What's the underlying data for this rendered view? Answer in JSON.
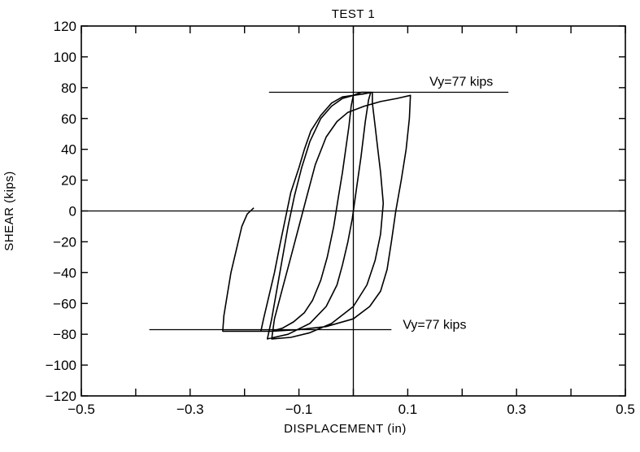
{
  "chart_data": {
    "type": "line",
    "title": "TEST  1",
    "xlabel": "DISPLACEMENT    (in)",
    "ylabel": "SHEAR    (kips)",
    "xlim": [
      -0.5,
      0.5
    ],
    "ylim": [
      -120,
      120
    ],
    "xticks": [
      -0.5,
      -0.3,
      -0.1,
      0.1,
      0.3,
      0.5
    ],
    "xtick_labels": [
      "−0.5",
      "−0.3",
      "−0.1",
      "0.1",
      "0.3",
      "0.5"
    ],
    "yticks": [
      120,
      100,
      80,
      60,
      40,
      20,
      0,
      -20,
      -40,
      -60,
      -80,
      -100,
      -120
    ],
    "ytick_labels": [
      "120",
      "100",
      "80",
      "60",
      "40",
      "20",
      "0",
      "−20",
      "−40",
      "−60",
      "−80",
      "−100",
      "−120"
    ],
    "grid": false,
    "reference_lines": [
      {
        "orientation": "horizontal",
        "y": 77,
        "x_range": [
          -0.155,
          0.285
        ],
        "label": "Vy=77 kips"
      },
      {
        "orientation": "horizontal",
        "y": -77,
        "x_range": [
          -0.375,
          0.07
        ],
        "label": "Vy=77 kips"
      },
      {
        "orientation": "horizontal",
        "y": 0,
        "x_range": [
          -0.5,
          0.5
        ]
      },
      {
        "orientation": "vertical",
        "x": 0,
        "y_range": [
          -120,
          120
        ]
      }
    ],
    "series": [
      {
        "points": [
          [
            0.0,
            75
          ],
          [
            -0.004,
            68
          ],
          [
            -0.008,
            55
          ],
          [
            -0.014,
            40
          ],
          [
            -0.02,
            25
          ],
          [
            -0.028,
            8
          ],
          [
            -0.036,
            -10
          ],
          [
            -0.048,
            -30
          ],
          [
            -0.06,
            -45
          ],
          [
            -0.075,
            -58
          ],
          [
            -0.09,
            -66
          ],
          [
            -0.11,
            -72
          ],
          [
            -0.13,
            -76
          ],
          [
            -0.15,
            -78
          ],
          [
            -0.17,
            -78
          ],
          [
            -0.165,
            -70
          ],
          [
            -0.155,
            -55
          ],
          [
            -0.145,
            -40
          ],
          [
            -0.135,
            -22
          ],
          [
            -0.125,
            -5
          ],
          [
            -0.115,
            12
          ],
          [
            -0.1,
            28
          ],
          [
            -0.09,
            40
          ],
          [
            -0.078,
            52
          ],
          [
            -0.06,
            62
          ],
          [
            -0.04,
            70
          ],
          [
            -0.02,
            74
          ],
          [
            0.0,
            75
          ],
          [
            0.015,
            77
          ],
          [
            0.032,
            77
          ],
          [
            0.028,
            72
          ],
          [
            0.022,
            58
          ],
          [
            0.014,
            35
          ],
          [
            0.006,
            15
          ],
          [
            -0.002,
            -5
          ],
          [
            -0.01,
            -20
          ],
          [
            -0.02,
            -35
          ],
          [
            -0.03,
            -48
          ],
          [
            -0.05,
            -62
          ],
          [
            -0.08,
            -73
          ],
          [
            -0.12,
            -80
          ],
          [
            -0.158,
            -83
          ],
          [
            -0.15,
            -70
          ],
          [
            -0.14,
            -50
          ],
          [
            -0.13,
            -30
          ],
          [
            -0.12,
            -10
          ],
          [
            -0.108,
            10
          ],
          [
            -0.095,
            28
          ],
          [
            -0.08,
            45
          ],
          [
            -0.06,
            60
          ],
          [
            -0.04,
            68
          ],
          [
            -0.02,
            73
          ],
          [
            0.0,
            75
          ],
          [
            0.02,
            76
          ],
          [
            0.035,
            77
          ],
          [
            0.035,
            70
          ],
          [
            0.04,
            55
          ],
          [
            0.045,
            40
          ],
          [
            0.05,
            25
          ],
          [
            0.055,
            5
          ],
          [
            0.05,
            -15
          ],
          [
            0.04,
            -32
          ],
          [
            0.025,
            -48
          ],
          [
            0.0,
            -62
          ],
          [
            -0.04,
            -73
          ],
          [
            -0.08,
            -79
          ],
          [
            -0.115,
            -82
          ],
          [
            -0.15,
            -83
          ],
          [
            -0.145,
            -70
          ],
          [
            -0.13,
            -50
          ],
          [
            -0.115,
            -30
          ],
          [
            -0.1,
            -10
          ],
          [
            -0.085,
            10
          ],
          [
            -0.07,
            30
          ],
          [
            -0.05,
            48
          ],
          [
            -0.03,
            58
          ],
          [
            -0.01,
            64
          ],
          [
            0.02,
            68
          ],
          [
            0.05,
            71
          ],
          [
            0.08,
            73
          ],
          [
            0.105,
            75
          ],
          [
            0.103,
            60
          ],
          [
            0.097,
            40
          ],
          [
            0.088,
            20
          ],
          [
            0.078,
            0
          ],
          [
            0.07,
            -20
          ],
          [
            0.062,
            -38
          ],
          [
            0.05,
            -52
          ],
          [
            0.03,
            -62
          ],
          [
            0.0,
            -70
          ],
          [
            -0.05,
            -75
          ],
          [
            -0.1,
            -77
          ],
          [
            -0.15,
            -78
          ],
          [
            -0.2,
            -78
          ],
          [
            -0.24,
            -78
          ],
          [
            -0.238,
            -68
          ],
          [
            -0.232,
            -55
          ],
          [
            -0.225,
            -40
          ],
          [
            -0.215,
            -25
          ],
          [
            -0.205,
            -10
          ],
          [
            -0.195,
            -2
          ],
          [
            -0.183,
            2
          ]
        ]
      }
    ]
  }
}
